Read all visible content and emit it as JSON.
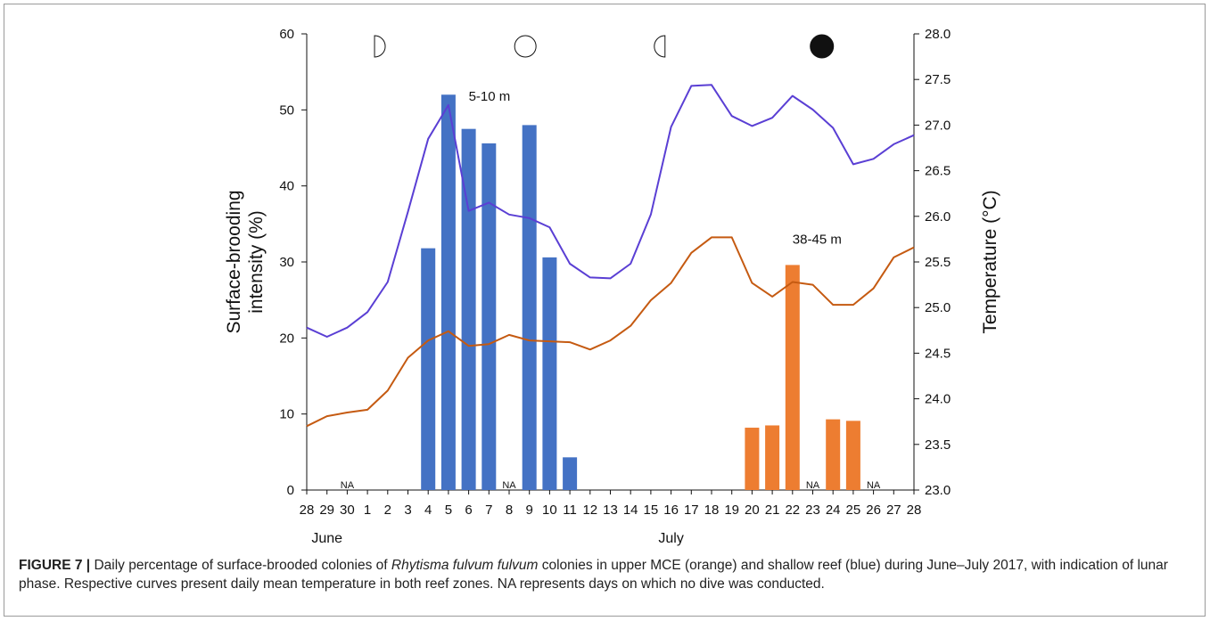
{
  "chart_data": {
    "type": "bar",
    "x_categories": [
      "28",
      "29",
      "30",
      "1",
      "2",
      "3",
      "4",
      "5",
      "6",
      "7",
      "8",
      "9",
      "10",
      "11",
      "12",
      "13",
      "14",
      "15",
      "16",
      "17",
      "18",
      "19",
      "20",
      "21",
      "22",
      "23",
      "24",
      "25",
      "26",
      "27",
      "28"
    ],
    "month_labels": [
      {
        "text": "June",
        "index": 1
      },
      {
        "text": "July",
        "index": 18
      }
    ],
    "y_left": {
      "label_lines": [
        "Surface-brooding",
        "intensity (%)"
      ],
      "ylim": [
        0,
        60
      ],
      "ticks": [
        "0",
        "10",
        "20",
        "30",
        "40",
        "50",
        "60"
      ]
    },
    "y_right": {
      "label": "Temperature (°C)",
      "ylim": [
        23.0,
        28.0
      ],
      "ticks": [
        "23.0",
        "23.5",
        "24.0",
        "24.5",
        "25.0",
        "25.5",
        "26.0",
        "26.5",
        "27.0",
        "27.5",
        "28.0"
      ]
    },
    "bar_series": [
      {
        "color": "#4472c4",
        "bars": [
          {
            "index": 6,
            "value": 31.8
          },
          {
            "index": 7,
            "value": 52.0
          },
          {
            "index": 8,
            "value": 47.5
          },
          {
            "index": 9,
            "value": 45.6
          },
          {
            "index": 11,
            "value": 48.0
          },
          {
            "index": 12,
            "value": 30.6
          },
          {
            "index": 13,
            "value": 4.3
          }
        ]
      },
      {
        "color": "#ed7d31",
        "bars": [
          {
            "index": 22,
            "value": 8.2
          },
          {
            "index": 23,
            "value": 8.5
          },
          {
            "index": 24,
            "value": 29.6
          },
          {
            "index": 26,
            "value": 9.3
          },
          {
            "index": 27,
            "value": 9.1
          }
        ]
      }
    ],
    "line_series": [
      {
        "color": "#5a3fd4",
        "values": [
          24.78,
          24.68,
          24.78,
          24.95,
          25.28,
          26.05,
          26.85,
          27.22,
          26.06,
          26.15,
          26.02,
          25.98,
          25.88,
          25.48,
          25.33,
          25.32,
          25.48,
          26.02,
          26.98,
          27.43,
          27.44,
          27.1,
          26.99,
          27.08,
          27.32,
          27.17,
          26.97,
          26.57,
          26.63,
          26.79,
          26.89
        ]
      },
      {
        "color": "#c55a11",
        "values": [
          23.7,
          23.81,
          23.85,
          23.88,
          24.09,
          24.45,
          24.64,
          24.74,
          24.58,
          24.6,
          24.7,
          24.64,
          24.63,
          24.62,
          24.54,
          24.64,
          24.8,
          25.08,
          25.27,
          25.6,
          25.77,
          25.77,
          25.27,
          25.12,
          25.28,
          25.25,
          25.03,
          25.03,
          25.21,
          25.55,
          25.66
        ]
      }
    ],
    "annotations": [
      {
        "text": "5-10 m",
        "x_index": 8.0,
        "y_value": 51.2
      },
      {
        "text": "38-45 m",
        "x_index": 24.0,
        "y_value": 32.4
      }
    ],
    "na_labels": [
      {
        "text": "NA",
        "index": 2
      },
      {
        "text": "NA",
        "index": 10
      },
      {
        "text": "NA",
        "index": 25
      },
      {
        "text": "NA",
        "index": 28
      }
    ],
    "moon_phases": [
      {
        "phase": "first-quarter",
        "x_index": 3.35
      },
      {
        "phase": "full-moon",
        "x_index": 10.8
      },
      {
        "phase": "last-quarter",
        "x_index": 17.7
      },
      {
        "phase": "new-moon",
        "x_index": 25.45
      }
    ]
  },
  "caption": {
    "label": "FIGURE 7 |",
    "text_before_italic": " Daily percentage of surface-brooded colonies of ",
    "italic": "Rhytisma fulvum fulvum",
    "text_after_italic": " colonies in upper MCE (orange) and shallow reef (blue) during June–July 2017, with indication of lunar phase. Respective curves present daily mean temperature in both reef zones. NA represents days on which no dive was conducted."
  }
}
